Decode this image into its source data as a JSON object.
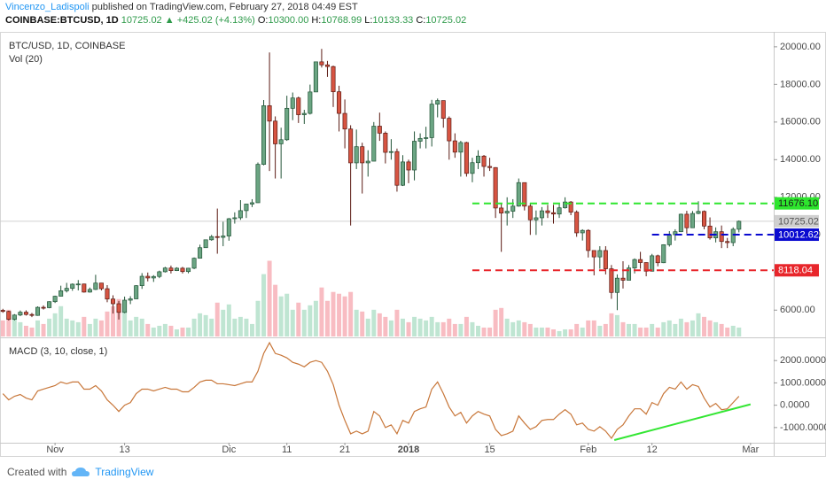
{
  "header": {
    "author": "Vincenzo_Ladispoli",
    "published": "published on TradingView.com, February 27, 2018 04:49 EST",
    "symbol": "COINBASE:BTCUSD, 1D",
    "last": "10725.02",
    "change": "▲ +425.02 (+4.13%)",
    "ohlc": [
      {
        "label": "O:",
        "value": "10300.00"
      },
      {
        "label": "H:",
        "value": "10768.99"
      },
      {
        "label": "L:",
        "value": "10133.33"
      },
      {
        "label": "C:",
        "value": "10725.02"
      }
    ]
  },
  "footer": {
    "created_with": "Created with",
    "brand": "TradingView"
  },
  "chart_data": [
    {
      "type": "candlestick",
      "title": "BTC/USD, 1D, COINBASE",
      "volume_label": "Vol (20)",
      "xlim": [
        -0.5,
        133
      ],
      "ylim": [
        4600,
        20700
      ],
      "xticks": [
        {
          "value": 9,
          "label": "Nov"
        },
        {
          "value": 21,
          "label": "13"
        },
        {
          "value": 39,
          "label": "Dic"
        },
        {
          "value": 49,
          "label": "11"
        },
        {
          "value": 59,
          "label": "21"
        },
        {
          "value": 70,
          "label": "2018"
        },
        {
          "value": 84,
          "label": "15"
        },
        {
          "value": 101,
          "label": "Feb"
        },
        {
          "value": 112,
          "label": "12"
        },
        {
          "value": 129,
          "label": "Mar"
        }
      ],
      "yticks": [
        {
          "value": 6000,
          "label": "6000.00"
        },
        {
          "value": 8000,
          "label": "8000.00"
        },
        {
          "value": 10000,
          "label": "10000.00"
        },
        {
          "value": 12000,
          "label": "12000.00"
        },
        {
          "value": 14000,
          "label": "14000.00"
        },
        {
          "value": 16000,
          "label": "16000.00"
        },
        {
          "value": 18000,
          "label": "18000.00"
        },
        {
          "value": 20000,
          "label": "20000.00"
        }
      ],
      "up_color": "#6ba583",
      "down_color": "#d75442",
      "up_border": "#225437",
      "down_border": "#5b1a13",
      "up_volume_color": "#a9dcc3",
      "down_volume_color": "#f5a6ae",
      "open": [
        5990,
        5930,
        5510,
        5740,
        5890,
        5770,
        5720,
        6150,
        6130,
        6450,
        6740,
        7030,
        7160,
        7380,
        7390,
        6960,
        7100,
        7440,
        7140,
        6590,
        6340,
        5880,
        6530,
        6600,
        7300,
        7800,
        7710,
        7790,
        8040,
        8240,
        8100,
        8230,
        8050,
        8230,
        8760,
        9320,
        9740,
        9910,
        9870,
        9940,
        10860,
        10910,
        11290,
        11640,
        11710,
        13750,
        16870,
        16050,
        14840,
        15060,
        16730,
        17280,
        16390,
        16460,
        17600,
        19200,
        19040,
        18950,
        17610,
        16460,
        15630,
        13830,
        14690,
        13830,
        13920,
        15780,
        15410,
        14390,
        14430,
        12640,
        13880,
        13450,
        14980,
        15130,
        15170,
        16950,
        17140,
        16200,
        15000,
        14400,
        14910,
        13270,
        13840,
        14190,
        13640,
        13580,
        11430,
        11160,
        11260,
        11530,
        12780,
        11530,
        10800,
        10910,
        11280,
        11180,
        11110,
        11440,
        11750,
        11210,
        10110,
        10240,
        9170,
        8830,
        9170,
        8200,
        6940,
        7700,
        7590,
        8240,
        8690,
        8530,
        8070,
        8890,
        8520,
        9480,
        10010,
        10170,
        11100,
        10380,
        11140,
        11250,
        10470,
        9840,
        10170,
        9650,
        9590,
        10300
      ],
      "high": [
        6070,
        5970,
        5790,
        5980,
        5990,
        5850,
        6200,
        6250,
        6470,
        6770,
        7300,
        7450,
        7420,
        7600,
        7410,
        7200,
        7880,
        7450,
        7330,
        6790,
        6490,
        6720,
        6740,
        7330,
        7970,
        8000,
        7860,
        8100,
        8300,
        8370,
        8280,
        8300,
        8250,
        8800,
        9480,
        9750,
        10000,
        11400,
        10700,
        10900,
        11200,
        11850,
        11650,
        11900,
        13850,
        17170,
        19700,
        16300,
        15700,
        17400,
        17570,
        17350,
        16650,
        17990,
        19200,
        19890,
        19250,
        19000,
        17930,
        17200,
        15830,
        15600,
        14900,
        14500,
        16000,
        16500,
        15500,
        15090,
        14590,
        14240,
        14000,
        15500,
        15400,
        15750,
        17180,
        17250,
        17100,
        16300,
        15400,
        15000,
        14950,
        14100,
        14500,
        14250,
        14100,
        13600,
        11700,
        12000,
        11900,
        13000,
        12780,
        11700,
        11300,
        11480,
        11600,
        11600,
        11650,
        12000,
        11800,
        11300,
        10300,
        10300,
        9170,
        9400,
        9400,
        8400,
        7900,
        8600,
        8400,
        8750,
        9100,
        8540,
        8990,
        8950,
        9500,
        10200,
        10300,
        11130,
        11280,
        11270,
        11790,
        11300,
        10930,
        10400,
        10500,
        9840,
        10400,
        10768.99
      ],
      "low": [
        5860,
        5450,
        5450,
        5680,
        5710,
        5630,
        5700,
        6030,
        6100,
        6380,
        6730,
        6940,
        7030,
        7050,
        6930,
        6930,
        7070,
        7050,
        6420,
        5820,
        5500,
        5840,
        6320,
        6590,
        7130,
        7530,
        7500,
        7700,
        8000,
        7950,
        8080,
        7950,
        7960,
        8180,
        8740,
        9320,
        9690,
        9000,
        9400,
        9690,
        10600,
        10800,
        10900,
        11480,
        11700,
        13700,
        13400,
        13000,
        13000,
        15000,
        16100,
        15950,
        15900,
        16400,
        17600,
        18900,
        18400,
        16800,
        15500,
        14600,
        10500,
        13500,
        12200,
        13100,
        13920,
        15000,
        13800,
        14000,
        12300,
        12600,
        12750,
        12900,
        14600,
        14600,
        14700,
        16250,
        15700,
        14000,
        14100,
        13100,
        13100,
        12800,
        13500,
        13100,
        13400,
        10900,
        9100,
        10500,
        10900,
        11500,
        11300,
        10000,
        10000,
        10500,
        10900,
        10600,
        10900,
        11400,
        11050,
        9900,
        9700,
        8800,
        7850,
        8200,
        7900,
        6600,
        6000,
        7150,
        7600,
        7950,
        8200,
        7800,
        8050,
        8330,
        8500,
        9380,
        9700,
        10150,
        10070,
        10380,
        11100,
        10300,
        9750,
        9600,
        9300,
        9300,
        9400,
        10133.33
      ],
      "close": [
        5930,
        5510,
        5740,
        5890,
        5770,
        5720,
        6150,
        6130,
        6450,
        6740,
        7030,
        7160,
        7380,
        7390,
        6960,
        7100,
        7440,
        7140,
        6590,
        6340,
        5880,
        6530,
        6600,
        7300,
        7800,
        7710,
        7790,
        8040,
        8240,
        8100,
        8230,
        8050,
        8230,
        8760,
        9320,
        9740,
        9910,
        9870,
        9940,
        10860,
        10910,
        11290,
        11640,
        11710,
        13750,
        16870,
        16050,
        14840,
        15060,
        16730,
        17280,
        16390,
        16460,
        17600,
        19200,
        19040,
        18950,
        17610,
        16460,
        15630,
        13830,
        14690,
        13830,
        13920,
        15780,
        15410,
        14390,
        14430,
        12640,
        13880,
        13450,
        14980,
        15130,
        15170,
        16950,
        17140,
        16200,
        15000,
        14400,
        14910,
        13270,
        13840,
        14190,
        13640,
        13580,
        11430,
        11160,
        11260,
        11530,
        12780,
        11530,
        10800,
        10910,
        11280,
        11180,
        11110,
        11440,
        11750,
        11210,
        10110,
        10240,
        9170,
        8830,
        9170,
        8200,
        6940,
        7700,
        7590,
        8240,
        8690,
        8530,
        8070,
        8890,
        8520,
        9480,
        10010,
        10170,
        11100,
        10380,
        11140,
        11250,
        10470,
        9840,
        10170,
        9650,
        9590,
        10300,
        10725.02
      ],
      "volume_ylim": [
        0,
        340
      ],
      "volume": [
        18,
        30,
        22,
        16,
        12,
        10,
        18,
        14,
        20,
        26,
        34,
        20,
        18,
        16,
        22,
        14,
        20,
        18,
        28,
        34,
        42,
        30,
        18,
        22,
        20,
        14,
        10,
        12,
        14,
        12,
        8,
        10,
        10,
        20,
        26,
        24,
        20,
        38,
        30,
        36,
        20,
        22,
        20,
        14,
        40,
        70,
        85,
        58,
        45,
        48,
        30,
        38,
        30,
        35,
        40,
        55,
        40,
        50,
        48,
        45,
        50,
        30,
        28,
        20,
        30,
        26,
        22,
        18,
        30,
        20,
        16,
        22,
        20,
        18,
        22,
        16,
        16,
        20,
        14,
        14,
        22,
        16,
        12,
        10,
        10,
        30,
        32,
        20,
        16,
        18,
        16,
        14,
        10,
        10,
        10,
        8,
        6,
        8,
        8,
        14,
        10,
        18,
        18,
        12,
        14,
        26,
        24,
        16,
        14,
        14,
        10,
        10,
        14,
        10,
        16,
        18,
        14,
        20,
        16,
        18,
        26,
        22,
        18,
        16,
        14,
        10,
        12,
        10
      ],
      "last_price_color": "#d0d0d0",
      "levels": [
        {
          "value": 11676.1,
          "label": "11676.10",
          "color": "#2ee62e",
          "text_color": "#1a1a1a",
          "start": 81
        },
        {
          "value": 10012.62,
          "label": "10012.62",
          "color": "#0a0ad0",
          "text_color": "#ffffff",
          "start": 112
        },
        {
          "value": 8118.04,
          "label": "8118.04",
          "color": "#e8262b",
          "text_color": "#ffffff",
          "start": 81
        }
      ]
    },
    {
      "type": "line",
      "title": "MACD (3, 10, close, 1)",
      "color": "#c8773a",
      "xlim": [
        -0.5,
        133
      ],
      "ylim": [
        -1680,
        2960
      ],
      "yticks": [
        {
          "value": -1000,
          "label": "-1000.0000"
        },
        {
          "value": 0,
          "label": "0.0000"
        },
        {
          "value": 1000,
          "label": "1000.0000"
        },
        {
          "value": 2000,
          "label": "2000.0000"
        }
      ],
      "values": [
        520,
        240,
        400,
        480,
        320,
        240,
        640,
        720,
        800,
        880,
        1040,
        960,
        1040,
        1040,
        720,
        720,
        880,
        640,
        240,
        0,
        -280,
        0,
        120,
        520,
        720,
        720,
        640,
        720,
        800,
        720,
        720,
        600,
        600,
        800,
        1040,
        1120,
        1120,
        960,
        960,
        920,
        880,
        960,
        1040,
        1040,
        1520,
        2320,
        2800,
        2320,
        2240,
        2120,
        1920,
        1840,
        1720,
        1920,
        2000,
        1920,
        1520,
        920,
        0,
        -680,
        -1280,
        -1160,
        -1280,
        -1160,
        -280,
        -480,
        -1000,
        -880,
        -1280,
        -680,
        -800,
        -280,
        -160,
        -80,
        720,
        1040,
        520,
        -80,
        -480,
        -320,
        -800,
        -480,
        -280,
        -400,
        -480,
        -1080,
        -1360,
        -1280,
        -1160,
        -480,
        -800,
        -1080,
        -960,
        -680,
        -640,
        -640,
        -400,
        -200,
        -400,
        -880,
        -800,
        -1080,
        -1160,
        -960,
        -1160,
        -1480,
        -1080,
        -880,
        -480,
        -160,
        -160,
        -400,
        120,
        0,
        520,
        800,
        720,
        1040,
        720,
        920,
        840,
        320,
        -80,
        80,
        -200,
        -160,
        120,
        400
      ],
      "trendline": {
        "color": "#33e633",
        "x": [
          105.5,
          129
        ],
        "y": [
          -1560,
          40
        ]
      }
    }
  ]
}
